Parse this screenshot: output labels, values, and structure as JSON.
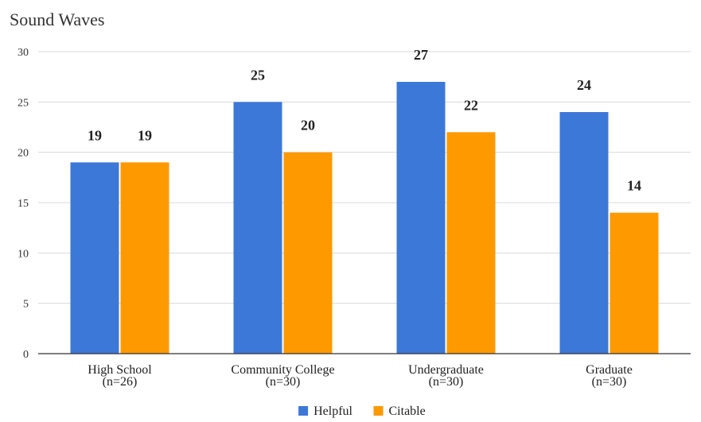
{
  "chart_data": {
    "type": "bar",
    "title": "Sound Waves",
    "categories": [
      [
        "High School",
        "(n=26)"
      ],
      [
        "Community College",
        "(n=30)"
      ],
      [
        "Undergraduate",
        "(n=30)"
      ],
      [
        "Graduate",
        "(n=30)"
      ]
    ],
    "series": [
      {
        "name": "Helpful",
        "values": [
          19,
          25,
          27,
          24
        ],
        "color": "#3c78d8"
      },
      {
        "name": "Citable",
        "values": [
          19,
          20,
          22,
          14
        ],
        "color": "#ff9900"
      }
    ],
    "ylim": [
      0,
      30
    ],
    "yticks": [
      "0",
      "5",
      "10",
      "15",
      "20",
      "25",
      "30"
    ],
    "grid": true,
    "legend": "bottom",
    "colors": {
      "grid": "#d9d9d9",
      "axis": "#333333"
    }
  }
}
